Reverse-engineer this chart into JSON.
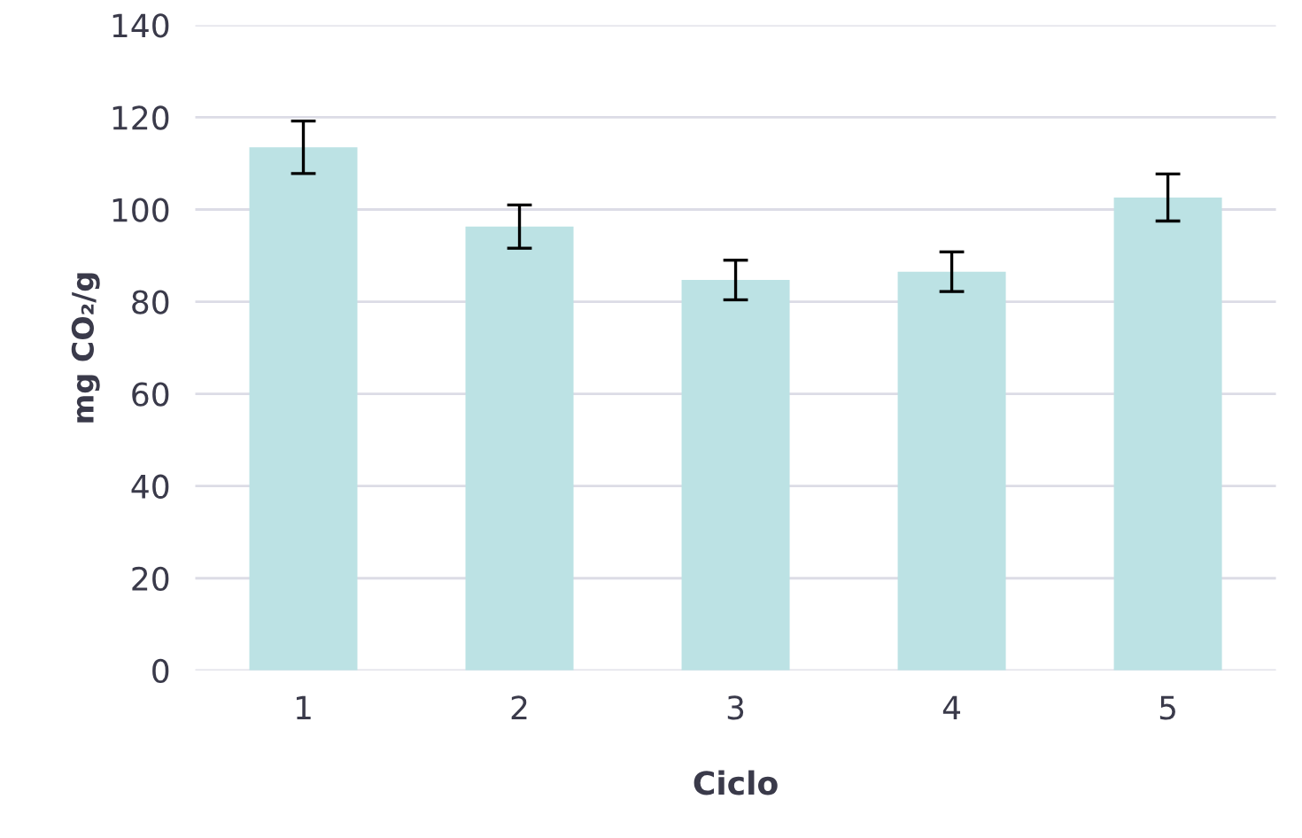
{
  "chart_data": {
    "type": "bar",
    "xlabel": "Ciclo",
    "ylabel": "mg CO₂/g",
    "categories": [
      "1",
      "2",
      "3",
      "4",
      "5"
    ],
    "values": [
      113.5,
      96.3,
      84.7,
      86.5,
      102.6
    ],
    "errors": [
      5.7,
      4.7,
      4.3,
      4.3,
      5.1
    ],
    "color": "#bce2e4",
    "ylim": [
      0,
      140
    ],
    "yticks": [
      0,
      20,
      40,
      60,
      80,
      100,
      120,
      140
    ],
    "grid": "y"
  }
}
